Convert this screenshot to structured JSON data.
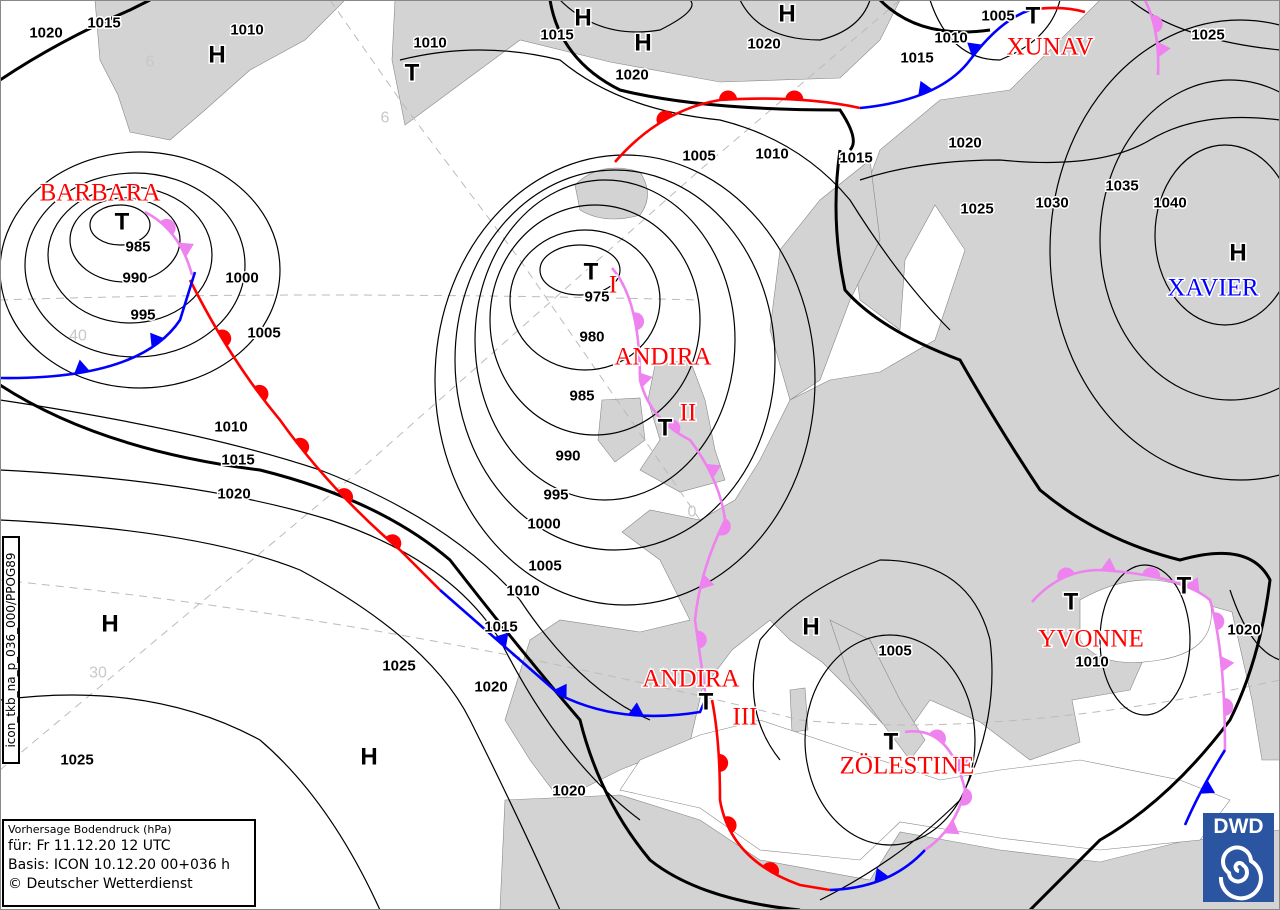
{
  "map": {
    "colors": {
      "land": "#d3d3d3",
      "sea": "#ffffff",
      "warm_front": "#ff0000",
      "cold_front": "#0000ff",
      "occlusion": "#ee82ee",
      "isobar": "#000000",
      "dwd_blue": "#2b55a0"
    },
    "isobar_labels": [
      "1020",
      "1015",
      "1010",
      "1010",
      "1015",
      "1020",
      "1020",
      "1005",
      "1010",
      "1015",
      "1025",
      "1005",
      "1010",
      "1015",
      "1020",
      "1025",
      "1030",
      "1035",
      "1040",
      "985",
      "990",
      "995",
      "1000",
      "1005",
      "975",
      "980",
      "985",
      "990",
      "995",
      "1000",
      "1010",
      "1015",
      "1020",
      "1005",
      "1010",
      "1015",
      "1025",
      "1020",
      "1025",
      "1020",
      "1005",
      "1010",
      "1020"
    ],
    "pressure_centers": [
      "H",
      "H",
      "H",
      "H",
      "H",
      "H",
      "H",
      "H",
      "T",
      "T",
      "T",
      "T",
      "T",
      "T",
      "T",
      "T",
      "T"
    ],
    "system_names": [
      {
        "text": "BARBARA",
        "color": "#ff0000"
      },
      {
        "text": "XUNAV",
        "color": "#ff0000"
      },
      {
        "text": "ANDIRA",
        "color": "#ff0000"
      },
      {
        "text": "I",
        "color": "#ff0000"
      },
      {
        "text": "II",
        "color": "#ff0000"
      },
      {
        "text": "ANDIRA",
        "color": "#ff0000"
      },
      {
        "text": "III",
        "color": "#ff0000"
      },
      {
        "text": "ZÖLESTINE",
        "color": "#ff0000"
      },
      {
        "text": "YVONNE",
        "color": "#ff0000"
      },
      {
        "text": "XAVIER",
        "color": "#0000ff"
      }
    ],
    "grid_labels": [
      "6",
      "6",
      "40",
      "0",
      "30"
    ]
  },
  "product_code": "icon_tkb_na_p_036_000/PPOG89",
  "legend": {
    "title": "Vorhersage Bodendruck (hPa)",
    "valid": "für:  Fr 11.12.20  12 UTC",
    "basis": "Basis: ICON  10.12.20 00+036 h",
    "copyright": "© Deutscher Wetterdienst"
  },
  "logo": {
    "text": "DWD",
    "icon": "spiral-icon"
  }
}
